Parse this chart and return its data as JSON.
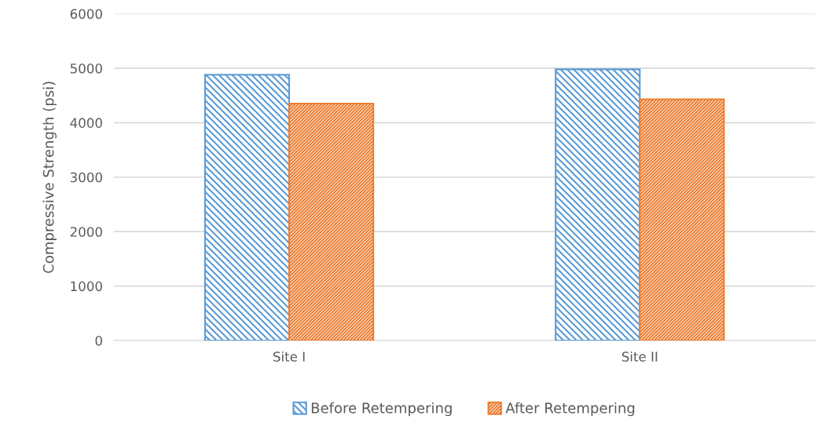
{
  "chart_data": {
    "type": "bar",
    "ylabel": "Compressive Strength (psi)",
    "categories": [
      "Site I",
      "Site II"
    ],
    "series": [
      {
        "name": "Before Retempering",
        "color": "#5b9bd5",
        "values": [
          4880,
          4980
        ]
      },
      {
        "name": "After Retempering",
        "color": "#ed7d31",
        "values": [
          4350,
          4430
        ]
      }
    ],
    "ylim": [
      0,
      6000
    ],
    "yticks": [
      0,
      1000,
      2000,
      3000,
      4000,
      5000,
      6000
    ],
    "grid": "y",
    "legend": "bottom"
  }
}
